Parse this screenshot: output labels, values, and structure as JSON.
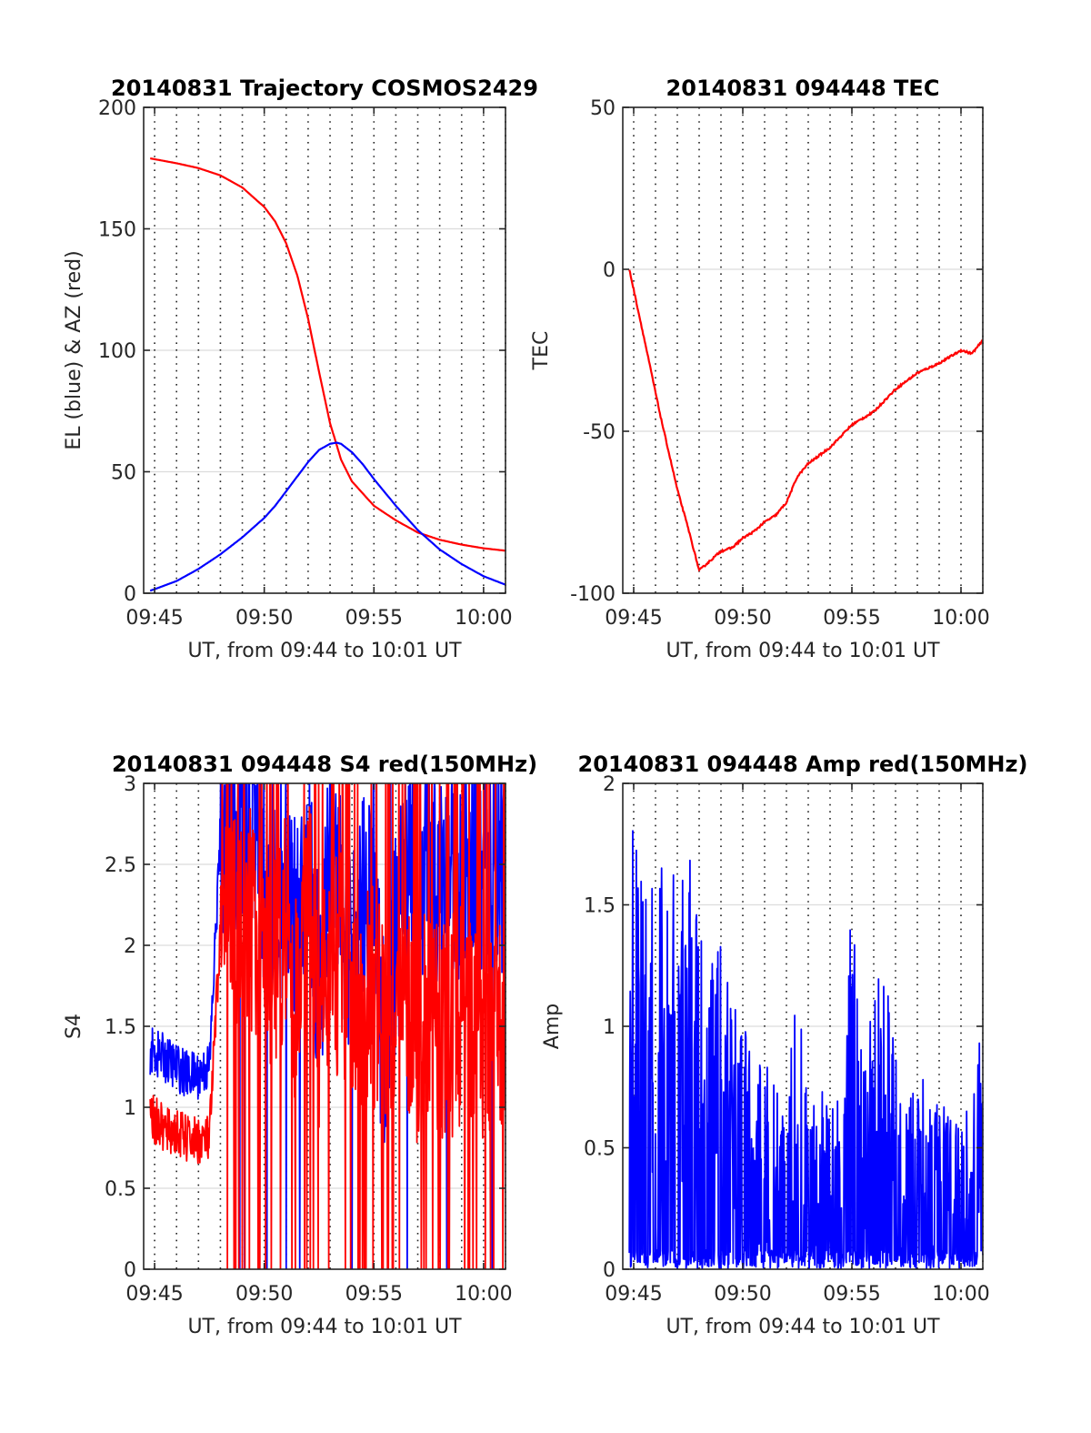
{
  "figure": {
    "background": "#ffffff",
    "colors": {
      "blue": "#0000ff",
      "red": "#ff0000",
      "grid": "#dcdcdc",
      "axis": "#262626"
    }
  },
  "chart_data": [
    {
      "type": "line",
      "title": "20140831 Trajectory COSMOS2429",
      "xlabel": "UT, from 09:44 to 10:01 UT",
      "ylabel": "EL (blue) & AZ (red)",
      "xlim": [
        "09:44:30",
        "10:01:00"
      ],
      "ylim": [
        0,
        200
      ],
      "x_ticks": [
        "09:45",
        "09:50",
        "09:55",
        "10:00"
      ],
      "y_ticks": [
        "0",
        "50",
        "100",
        "150",
        "200"
      ],
      "grid": "dotted vertical every minute, light horizontal",
      "series": [
        {
          "color": "#ff0000",
          "x": [
            "09:44:48",
            "09:46:00",
            "09:47:00",
            "09:48:00",
            "09:49:00",
            "09:50:00",
            "09:50:30",
            "09:51:00",
            "09:51:30",
            "09:52:00",
            "09:52:30",
            "09:53:00",
            "09:53:30",
            "09:54:00",
            "09:55:00",
            "09:56:00",
            "09:57:00",
            "09:58:00",
            "09:59:00",
            "10:00:00",
            "10:01:00"
          ],
          "y": [
            179,
            177,
            175,
            172,
            167,
            159,
            153,
            144,
            131,
            113,
            91,
            70,
            55,
            46,
            36,
            30,
            25,
            22,
            20,
            18.5,
            17.5
          ]
        },
        {
          "color": "#0000ff",
          "x": [
            "09:44:48",
            "09:46:00",
            "09:47:00",
            "09:48:00",
            "09:49:00",
            "09:50:00",
            "09:50:30",
            "09:51:00",
            "09:51:30",
            "09:52:00",
            "09:52:30",
            "09:53:00",
            "09:53:18",
            "09:53:30",
            "09:54:00",
            "09:54:30",
            "09:55:00",
            "09:56:00",
            "09:57:00",
            "09:58:00",
            "09:59:00",
            "10:00:00",
            "10:01:00"
          ],
          "y": [
            1,
            5,
            10,
            16,
            23,
            31,
            36,
            42,
            48,
            54,
            59,
            61.5,
            62,
            61.5,
            58,
            53,
            47,
            36,
            26,
            18,
            12,
            7,
            3.5
          ]
        }
      ]
    },
    {
      "type": "line",
      "title": "20140831 094448 TEC",
      "xlabel": "UT, from 09:44 to 10:01 UT",
      "ylabel": "TEC",
      "xlim": [
        "09:44:30",
        "10:01:00"
      ],
      "ylim": [
        -100,
        50
      ],
      "x_ticks": [
        "09:45",
        "09:50",
        "09:55",
        "10:00"
      ],
      "y_ticks": [
        "-100",
        "-50",
        "0",
        "50"
      ],
      "grid": "dotted vertical every minute, light horizontal",
      "series": [
        {
          "color": "#ff0000",
          "x": [
            "09:44:48",
            "09:45:30",
            "09:46:15",
            "09:47:00",
            "09:47:30",
            "09:48:00",
            "09:48:30",
            "09:49:00",
            "09:49:30",
            "09:50:00",
            "09:50:30",
            "09:51:00",
            "09:51:30",
            "09:52:00",
            "09:52:30",
            "09:53:00",
            "09:54:00",
            "09:55:00",
            "09:56:00",
            "09:57:00",
            "09:58:00",
            "09:59:00",
            "10:00:00",
            "10:00:30",
            "10:01:00"
          ],
          "y": [
            0,
            -22,
            -46,
            -68,
            -80,
            -93,
            -90,
            -87,
            -86,
            -83,
            -81,
            -78,
            -76,
            -72,
            -64,
            -60,
            -55,
            -48,
            -44,
            -37,
            -32,
            -29,
            -25,
            -26,
            -22
          ]
        }
      ]
    },
    {
      "type": "line",
      "title": "20140831 094448 S4 red(150MHz)",
      "xlabel": "UT, from 09:44 to 10:01 UT",
      "ylabel": "S4",
      "xlim": [
        "09:44:30",
        "10:01:00"
      ],
      "ylim": [
        0,
        3
      ],
      "x_ticks": [
        "09:45",
        "09:50",
        "09:55",
        "10:00"
      ],
      "y_ticks": [
        "0",
        "0.5",
        "1",
        "1.5",
        "2",
        "2.5",
        "3"
      ],
      "grid": "dotted vertical every minute, light horizontal",
      "series": [
        {
          "color": "#0000ff",
          "x": [
            "09:44:48",
            "09:45:30",
            "09:46:00",
            "09:46:30",
            "09:47:00",
            "09:47:30",
            "09:48:00",
            "09:48:30",
            "09:49:00",
            "09:49:30",
            "09:50:00",
            "09:50:30",
            "09:51:00",
            "09:51:30",
            "09:52:00",
            "09:52:30",
            "09:53:00",
            "09:53:30",
            "09:54:00",
            "09:54:30",
            "09:55:00",
            "09:55:30",
            "09:56:00",
            "09:56:30",
            "09:57:00",
            "09:57:30",
            "09:58:00",
            "09:58:30",
            "09:59:00",
            "09:59:30",
            "10:00:00",
            "10:00:30",
            "10:01:00"
          ],
          "y": [
            1.35,
            1.3,
            1.25,
            1.2,
            1.2,
            1.25,
            2.7,
            2.9,
            2.6,
            2.8,
            2.4,
            2.2,
            2.5,
            2.0,
            2.7,
            1.7,
            2.6,
            2.3,
            1.9,
            2.3,
            2.2,
            1.2,
            2.0,
            2.5,
            2.2,
            2.6,
            2.3,
            2.5,
            2.3,
            2.5,
            2.4,
            2.6,
            2.5
          ]
        },
        {
          "color": "#ff0000",
          "x": [
            "09:44:48",
            "09:45:30",
            "09:46:00",
            "09:46:30",
            "09:47:00",
            "09:47:30",
            "09:48:00",
            "09:48:30",
            "09:49:00",
            "09:49:30",
            "09:50:00",
            "09:50:30",
            "09:51:00",
            "09:51:30",
            "09:52:00",
            "09:52:30",
            "09:53:00",
            "09:53:30",
            "09:54:00",
            "09:54:30",
            "09:55:00",
            "09:55:30",
            "09:56:00",
            "09:56:30",
            "09:57:00",
            "09:57:30",
            "09:58:00",
            "09:58:30",
            "09:59:00",
            "09:59:30",
            "10:00:00",
            "10:00:30",
            "10:01:00"
          ],
          "y": [
            0.95,
            0.85,
            0.85,
            0.8,
            0.8,
            0.8,
            2.1,
            2.3,
            2.0,
            2.2,
            1.8,
            1.9,
            2.2,
            1.6,
            2.4,
            1.5,
            1.8,
            1.9,
            1.5,
            1.6,
            1.7,
            1.6,
            1.5,
            1.7,
            1.4,
            1.6,
            1.5,
            1.5,
            1.6,
            1.5,
            1.4,
            1.5,
            1.5
          ]
        }
      ]
    },
    {
      "type": "line",
      "title": "20140831 094448 Amp red(150MHz)",
      "xlabel": "UT, from 09:44 to 10:01 UT",
      "ylabel": "Amp",
      "xlim": [
        "09:44:30",
        "10:01:00"
      ],
      "ylim": [
        0,
        2
      ],
      "x_ticks": [
        "09:45",
        "09:50",
        "09:55",
        "10:00"
      ],
      "y_ticks": [
        "0",
        "0.5",
        "1",
        "1.5",
        "2"
      ],
      "grid": "dotted vertical every minute, light horizontal",
      "series": [
        {
          "color": "#0000ff",
          "x": [
            "09:44:48",
            "09:45:00",
            "09:45:30",
            "09:46:00",
            "09:46:30",
            "09:47:00",
            "09:47:30",
            "09:48:00",
            "09:48:30",
            "09:49:00",
            "09:49:30",
            "09:50:00",
            "09:50:30",
            "09:51:00",
            "09:51:30",
            "09:52:00",
            "09:52:30",
            "09:53:00",
            "09:53:30",
            "09:54:00",
            "09:54:30",
            "09:55:00",
            "09:55:30",
            "09:56:00",
            "09:56:30",
            "09:57:00",
            "09:57:30",
            "09:58:00",
            "09:58:30",
            "09:59:00",
            "09:59:30",
            "10:00:00",
            "10:00:30",
            "10:01:00"
          ],
          "y": [
            1.1,
            2.0,
            1.5,
            1.8,
            1.7,
            1.85,
            1.8,
            1.4,
            1.3,
            1.35,
            1.1,
            1.1,
            0.85,
            1.0,
            0.8,
            0.7,
            1.2,
            0.8,
            0.75,
            0.7,
            0.7,
            1.55,
            0.8,
            1.3,
            1.25,
            0.9,
            0.7,
            0.75,
            0.95,
            0.7,
            0.65,
            0.6,
            0.7,
            1.1
          ]
        }
      ]
    }
  ]
}
